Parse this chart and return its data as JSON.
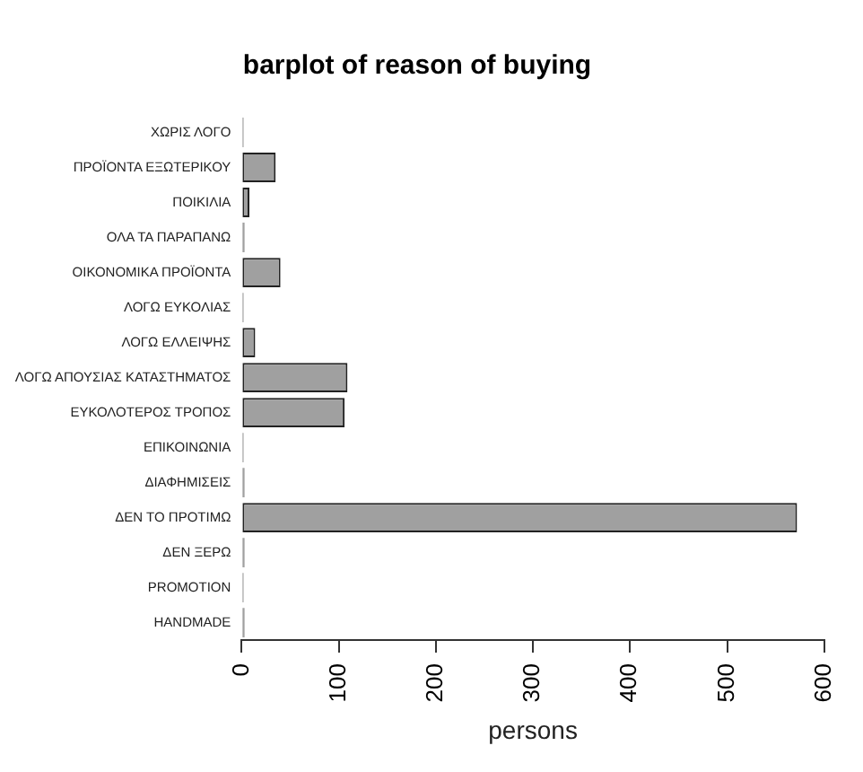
{
  "chart_data": {
    "type": "bar",
    "orientation": "horizontal",
    "title": "barplot of reason of buying",
    "xlabel": "persons",
    "categories": [
      "ΧΩΡΙΣ ΛΟΓΟ",
      "ΠΡΟΪΟΝΤΑ ΕΞΩΤΕΡΙΚΟΥ",
      "ΠΟΙΚΙΛΙΑ",
      "ΟΛΑ ΤΑ ΠΑΡΑΠΑΝΩ",
      "ΟΙΚΟΝΟΜΙΚΑ ΠΡΟΪΟΝΤΑ",
      "ΛΟΓΩ ΕΥΚΟΛΙΑΣ",
      "ΛΟΓΩ ΕΛΛΕΙΨΗΣ",
      "ΛΟΓΩ ΑΠΟΥΣΙΑΣ ΚΑΤΑΣΤΗΜΑΤΟΣ",
      "ΕΥΚΟΛΟΤΕΡΟΣ ΤΡΟΠΟΣ",
      "ΕΠΙΚΟΙΝΩΝΙΑ",
      "ΔΙΑΦΗΜΙΣΕΙΣ",
      "ΔΕΝ ΤΟ ΠΡΟΤΙΜΩ",
      "ΔΕΝ ΞΕΡΩ",
      "PROMOTION",
      "HANDMADE"
    ],
    "values": [
      2,
      35,
      8,
      3,
      40,
      2,
      14,
      109,
      106,
      2,
      3,
      572,
      3,
      2,
      3
    ],
    "color": "#a0a0a0",
    "xlim": [
      0,
      600
    ],
    "xticks": [
      0,
      100,
      200,
      300,
      400,
      500,
      600
    ],
    "grid": false,
    "legend": false
  }
}
